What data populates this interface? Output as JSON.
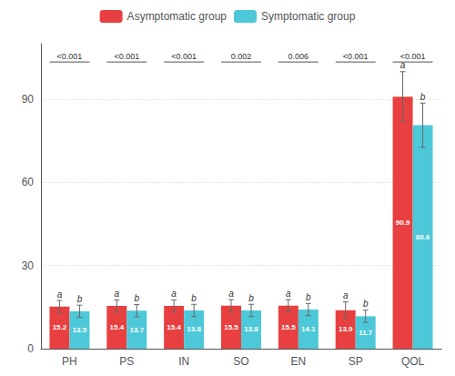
{
  "chart_data": {
    "type": "bar",
    "categories": [
      "PH",
      "PS",
      "IN",
      "SO",
      "EN",
      "SP",
      "QOL"
    ],
    "series": [
      {
        "name": "Asymptomatic group",
        "color": "#E84040",
        "values": [
          15.2,
          15.4,
          15.4,
          15.5,
          15.5,
          13.9,
          90.9
        ],
        "errors": [
          2.2,
          2.2,
          2.2,
          2.2,
          2.2,
          3.0,
          9.0
        ],
        "annotation": "a"
      },
      {
        "name": "Symptomatic group",
        "color": "#4DC8D8",
        "values": [
          13.5,
          13.7,
          13.8,
          13.8,
          14.1,
          11.7,
          80.6
        ],
        "errors": [
          2.2,
          2.2,
          2.2,
          2.2,
          2.2,
          2.2,
          8.0
        ],
        "annotation": "b"
      }
    ],
    "p_values": [
      "<0.001",
      "<0.001",
      "<0.001",
      "0.002",
      "0.006",
      "<0.001",
      "<0.001"
    ],
    "ylim": [
      0,
      110
    ],
    "yticks": [
      0,
      30,
      60,
      90
    ],
    "grid": true,
    "legend": "top",
    "data_labels": true
  }
}
